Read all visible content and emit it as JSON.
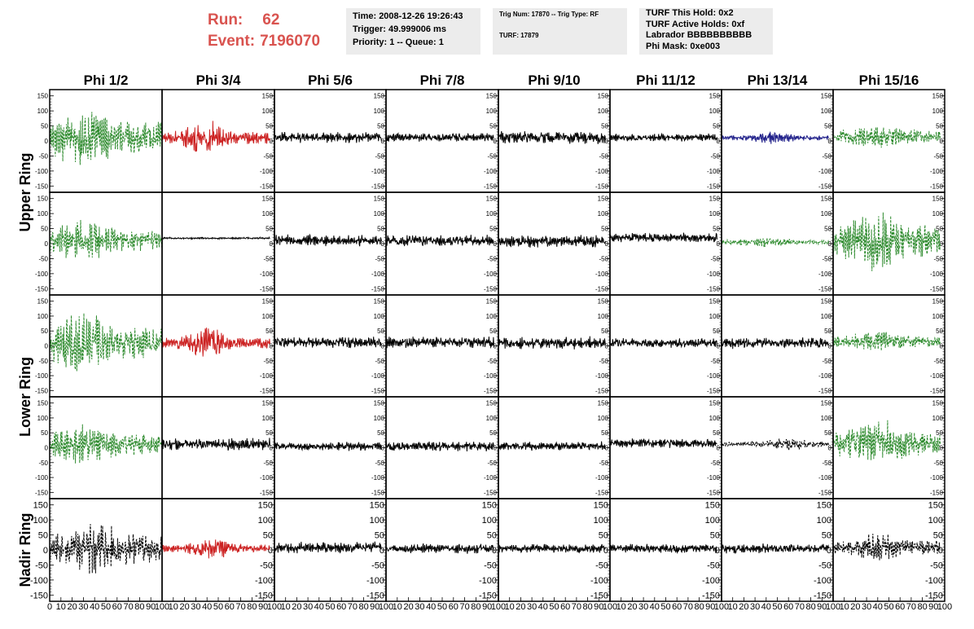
{
  "header": {
    "run_label": "Run:",
    "run_value": "62",
    "event_label": "Event:",
    "event_value": "7196070",
    "time_line": "Time: 2008-12-26 19:26:43",
    "trigger_line": "Trigger: 49.999006 ms",
    "priority_line": "Priority: 1 -- Queue: 1",
    "trig_line": "Trig Num: 17870 -- Trig Type: RF",
    "turf_line": "TURF: 17879",
    "turf_hold_line": "TURF This Hold: 0x2",
    "turf_active_line": "TURF Active Holds: 0xf",
    "labrador_line": "Labrador BBBBBBBBBB",
    "phi_mask_line": "Phi Mask: 0xe003"
  },
  "chart_data": {
    "type": "line",
    "columns": [
      "Phi 1/2",
      "Phi 3/4",
      "Phi 5/6",
      "Phi 7/8",
      "Phi 9/10",
      "Phi 11/12",
      "Phi 13/14",
      "Phi 15/16"
    ],
    "ring_labels": [
      "Upper Ring",
      "Lower Ring",
      "Nadir Ring"
    ],
    "xlim": [
      0,
      100
    ],
    "ylim": [
      -160,
      160
    ],
    "y_ticks": [
      150,
      100,
      50,
      0,
      -50,
      -100,
      -150
    ],
    "y_tick_labels": [
      "150",
      "100",
      "50",
      "0",
      "-50",
      "-100",
      "-150"
    ],
    "x_tick_labels": [
      "0",
      "10",
      "20",
      "30",
      "40",
      "50",
      "60",
      "70",
      "80",
      "90",
      "100"
    ],
    "grid": false,
    "colors": {
      "green": "#2e8b2e",
      "red": "#cc2222",
      "blue": "#22228b",
      "black": "#000000"
    },
    "panels": [
      [
        {
          "color": "green",
          "style": "dashed",
          "amp": 90,
          "center": 10,
          "burst": 30,
          "mode": "wide"
        },
        {
          "color": "red",
          "style": "solid",
          "amp": 50,
          "center": 10,
          "burst": 40,
          "mode": "burst",
          "xmax": 96
        },
        {
          "color": "black",
          "style": "solid",
          "amp": 18,
          "center": 12,
          "mode": "noise",
          "xmax": 96
        },
        {
          "color": "black",
          "style": "solid",
          "amp": 14,
          "center": 12,
          "mode": "noise",
          "xmax": 96
        },
        {
          "color": "black",
          "style": "solid",
          "amp": 20,
          "center": 12,
          "mode": "noise",
          "xmax": 96
        },
        {
          "color": "black",
          "style": "solid",
          "amp": 12,
          "center": 12,
          "mode": "noise",
          "xmax": 96
        },
        {
          "color": "blue",
          "style": "solid",
          "amp": 18,
          "center": 10,
          "burst": 45,
          "mode": "burst",
          "xmax": 96
        },
        {
          "color": "green",
          "style": "dashed",
          "amp": 35,
          "center": 15,
          "burst": 40,
          "mode": "wide",
          "xmax": 96
        }
      ],
      [
        {
          "color": "green",
          "style": "dashed",
          "amp": 60,
          "center": 10,
          "burst": 30,
          "mode": "wide"
        },
        {
          "color": "black",
          "style": "solid",
          "amp": 3,
          "center": 18,
          "mode": "noise",
          "xmax": 96
        },
        {
          "color": "black",
          "style": "solid",
          "amp": 18,
          "center": 10,
          "mode": "noise",
          "xmax": 96
        },
        {
          "color": "black",
          "style": "solid",
          "amp": 18,
          "center": 10,
          "mode": "noise",
          "xmax": 96
        },
        {
          "color": "black",
          "style": "solid",
          "amp": 20,
          "center": 8,
          "burst": 40,
          "mode": "noise",
          "xmax": 96
        },
        {
          "color": "black",
          "style": "solid",
          "amp": 14,
          "center": 20,
          "mode": "noise",
          "xmax": 96
        },
        {
          "color": "green",
          "style": "dashed",
          "amp": 18,
          "center": 5,
          "burst": 40,
          "mode": "burst",
          "xmax": 96
        },
        {
          "color": "green",
          "style": "dashed",
          "amp": 90,
          "center": 10,
          "burst": 40,
          "mode": "wide",
          "xmax": 96
        }
      ],
      [
        {
          "color": "green",
          "style": "dashed",
          "amp": 90,
          "center": 10,
          "burst": 30,
          "mode": "wide"
        },
        {
          "color": "red",
          "style": "solid",
          "amp": 45,
          "center": 10,
          "burst": 40,
          "mode": "burst",
          "xmax": 96
        },
        {
          "color": "black",
          "style": "solid",
          "amp": 18,
          "center": 12,
          "mode": "noise",
          "xmax": 96
        },
        {
          "color": "black",
          "style": "solid",
          "amp": 18,
          "center": 12,
          "mode": "noise",
          "xmax": 96
        },
        {
          "color": "black",
          "style": "solid",
          "amp": 20,
          "center": 10,
          "mode": "noise",
          "xmax": 96
        },
        {
          "color": "black",
          "style": "solid",
          "amp": 16,
          "center": 10,
          "mode": "noise",
          "xmax": 96
        },
        {
          "color": "black",
          "style": "solid",
          "amp": 18,
          "center": 10,
          "mode": "noise",
          "xmax": 96
        },
        {
          "color": "green",
          "style": "dashed",
          "amp": 30,
          "center": 15,
          "burst": 40,
          "mode": "wide",
          "xmax": 96
        }
      ],
      [
        {
          "color": "green",
          "style": "dashed",
          "amp": 60,
          "center": 10,
          "burst": 30,
          "mode": "wide"
        },
        {
          "color": "black",
          "style": "solid",
          "amp": 20,
          "center": 12,
          "mode": "noise",
          "xmax": 96
        },
        {
          "color": "black",
          "style": "solid",
          "amp": 14,
          "center": 5,
          "mode": "noise",
          "xmax": 96
        },
        {
          "color": "black",
          "style": "solid",
          "amp": 16,
          "center": 5,
          "mode": "noise",
          "xmax": 96
        },
        {
          "color": "black",
          "style": "solid",
          "amp": 14,
          "center": 5,
          "mode": "noise",
          "xmax": 96
        },
        {
          "color": "black",
          "style": "solid",
          "amp": 14,
          "center": 15,
          "mode": "noise",
          "xmax": 96
        },
        {
          "color": "black",
          "style": "dashed",
          "amp": 18,
          "center": 12,
          "burst": 60,
          "mode": "burst",
          "xmax": 96
        },
        {
          "color": "green",
          "style": "dashed",
          "amp": 70,
          "center": 15,
          "burst": 40,
          "mode": "wide",
          "xmax": 96
        }
      ],
      [
        {
          "color": "black",
          "style": "dashed",
          "amp": 80,
          "center": 5,
          "burst": 40,
          "mode": "wide"
        },
        {
          "color": "red",
          "style": "solid",
          "amp": 30,
          "center": 5,
          "burst": 45,
          "mode": "burst",
          "xmax": 96
        },
        {
          "color": "black",
          "style": "solid",
          "amp": 18,
          "center": 8,
          "mode": "noise",
          "xmax": 96
        },
        {
          "color": "black",
          "style": "solid",
          "amp": 16,
          "center": 5,
          "mode": "noise",
          "xmax": 96
        },
        {
          "color": "black",
          "style": "solid",
          "amp": 14,
          "center": 5,
          "mode": "noise",
          "xmax": 96
        },
        {
          "color": "black",
          "style": "solid",
          "amp": 14,
          "center": 5,
          "mode": "noise",
          "xmax": 96
        },
        {
          "color": "black",
          "style": "solid",
          "amp": 16,
          "center": 5,
          "mode": "noise",
          "xmax": 96
        },
        {
          "color": "black",
          "style": "dashed",
          "amp": 40,
          "center": 10,
          "burst": 40,
          "mode": "wide",
          "xmax": 96
        }
      ]
    ]
  }
}
